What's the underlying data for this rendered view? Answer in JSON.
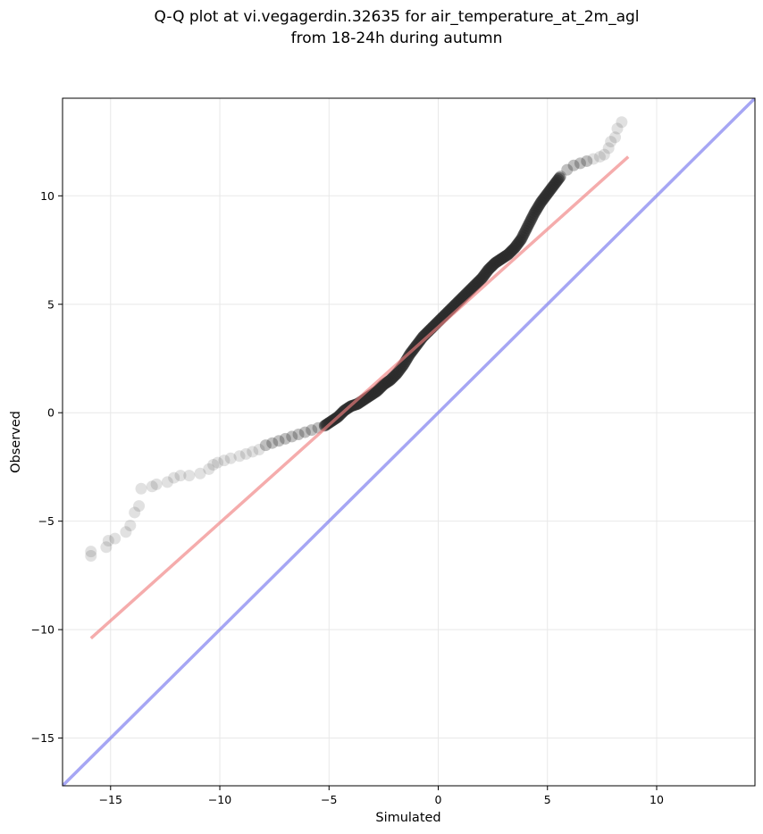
{
  "chart_data": {
    "type": "scatter",
    "title": "Q-Q plot at vi.vegagerdin.32635 for air_temperature_at_2m_agl",
    "subtitle": "from 18-24h during autumn",
    "xlabel": "Simulated",
    "ylabel": "Observed",
    "xlim": [
      -17.2,
      14.5
    ],
    "ylim": [
      -17.2,
      14.5
    ],
    "xticks": [
      -15,
      -10,
      -5,
      0,
      5,
      10
    ],
    "yticks": [
      -15,
      -10,
      -5,
      0,
      5,
      10
    ],
    "xtick_labels": [
      "−15",
      "−10",
      "−5",
      "0",
      "5",
      "10"
    ],
    "ytick_labels": [
      "−15",
      "−10",
      "−5",
      "0",
      "5",
      "10"
    ],
    "grid": true,
    "colors": {
      "points": "#2b2b2b",
      "fit_line": "#f08080",
      "identity_line": "#8080f0"
    },
    "fit_line": {
      "x": [
        -15.9,
        8.7
      ],
      "y": [
        -10.4,
        11.8
      ]
    },
    "identity_line": {
      "x": [
        -17.2,
        14.5
      ],
      "y": [
        -17.2,
        14.5
      ]
    },
    "quantiles": {
      "x": [
        -15.9,
        -15.9,
        -15.2,
        -15.1,
        -14.8,
        -14.3,
        -14.1,
        -13.9,
        -13.7,
        -13.6,
        -13.1,
        -12.9,
        -12.4,
        -12.1,
        -11.8,
        -11.4,
        -10.9,
        -10.5,
        -10.3,
        -10.1,
        -9.8,
        -9.5,
        -9.1,
        -8.8,
        -8.5,
        -8.2,
        -7.9,
        -7.6,
        -7.3,
        -7.0,
        -6.7,
        -6.4,
        -6.1,
        -5.8,
        -5.5,
        -5.2,
        -4.9,
        -4.6,
        -4.3,
        -4.0,
        -3.7,
        -3.4,
        -3.1,
        -2.8,
        -2.5,
        -2.2,
        -1.9,
        -1.6,
        -1.3,
        -1.0,
        -0.7,
        -0.4,
        -0.1,
        0.2,
        0.5,
        0.8,
        1.1,
        1.4,
        1.7,
        2.0,
        2.3,
        2.6,
        2.9,
        3.2,
        3.5,
        3.8,
        4.1,
        4.4,
        4.7,
        5.0,
        5.3,
        5.6,
        5.9,
        6.2,
        6.5,
        6.8,
        7.1,
        7.4,
        7.6,
        7.8,
        7.9,
        8.1,
        8.2,
        8.4
      ],
      "y": [
        -6.6,
        -6.4,
        -6.2,
        -5.9,
        -5.8,
        -5.5,
        -5.2,
        -4.6,
        -4.3,
        -3.5,
        -3.4,
        -3.3,
        -3.2,
        -3.0,
        -2.9,
        -2.9,
        -2.8,
        -2.6,
        -2.4,
        -2.3,
        -2.2,
        -2.1,
        -2.0,
        -1.9,
        -1.8,
        -1.7,
        -1.5,
        -1.4,
        -1.3,
        -1.2,
        -1.1,
        -1.0,
        -0.9,
        -0.8,
        -0.7,
        -0.6,
        -0.4,
        -0.2,
        0.1,
        0.3,
        0.4,
        0.6,
        0.8,
        1.0,
        1.3,
        1.5,
        1.8,
        2.2,
        2.7,
        3.1,
        3.5,
        3.8,
        4.1,
        4.4,
        4.7,
        5.0,
        5.3,
        5.6,
        5.9,
        6.2,
        6.6,
        6.9,
        7.1,
        7.3,
        7.6,
        8.0,
        8.6,
        9.2,
        9.7,
        10.1,
        10.5,
        10.9,
        11.2,
        11.4,
        11.5,
        11.6,
        11.7,
        11.8,
        11.9,
        12.2,
        12.5,
        12.7,
        13.1,
        13.4
      ]
    }
  }
}
